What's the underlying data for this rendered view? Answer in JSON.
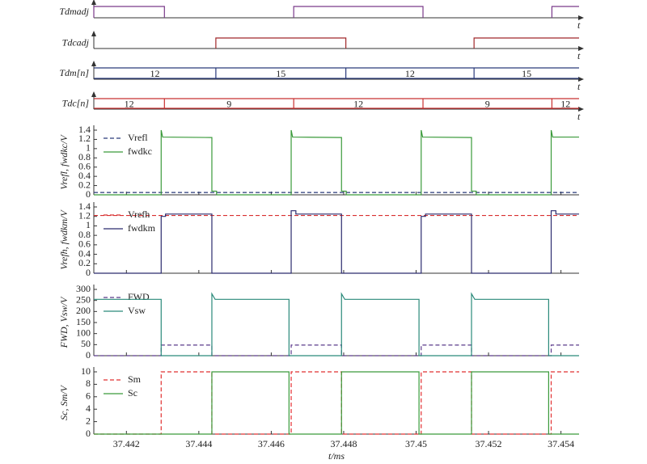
{
  "chart_data": [
    {
      "type": "digital",
      "ylabel": "Tdmadj",
      "xaxis_label": "t",
      "color": "#7a3a8a",
      "xlim": [
        37.4411,
        37.4545
      ],
      "intervals": [
        [
          37.4411,
          37.44305
        ],
        [
          37.44662,
          37.45019
        ],
        [
          37.45375,
          37.4545
        ]
      ]
    },
    {
      "type": "digital",
      "ylabel": "Tdcadj",
      "xaxis_label": "t",
      "color": "#a0282a",
      "xlim": [
        37.4411,
        37.4545
      ],
      "intervals": [
        [
          37.44447,
          37.44806
        ],
        [
          37.4516,
          37.4545
        ]
      ]
    },
    {
      "type": "bus",
      "ylabel": "Tdm[n]",
      "xaxis_label": "t",
      "color": "#2a3a7a",
      "xlim": [
        37.4411,
        37.4545
      ],
      "boundaries": [
        37.44447,
        37.44806,
        37.4516
      ],
      "values": [
        12,
        15,
        12,
        15
      ]
    },
    {
      "type": "bus",
      "ylabel": "Tdc[n]",
      "xaxis_label": "t",
      "color": "#c83030",
      "xlim": [
        37.4411,
        37.4545
      ],
      "boundaries": [
        37.44305,
        37.44662,
        37.45019,
        37.45375
      ],
      "values": [
        12,
        9,
        12,
        9,
        12
      ]
    },
    {
      "type": "line",
      "ylabel": "Vrefl, fwdkc/V",
      "xlim": [
        37.4411,
        37.4545
      ],
      "ylim": [
        0,
        1.4
      ],
      "yticks": [
        0,
        0.2,
        0.4,
        0.6,
        0.8,
        1,
        1.2,
        1.4
      ],
      "legend": "upper left",
      "series": [
        {
          "name": "Vrefl",
          "color": "#2a3a7a",
          "dash": true,
          "x": [
            37.4411,
            37.4545
          ],
          "values": [
            0.05,
            0.05
          ]
        },
        {
          "name": "fwdkc",
          "color": "#3a9a3a",
          "dash": false,
          "x": [
            37.4411,
            37.44296,
            37.44296,
            37.443,
            37.44436,
            37.44436,
            37.44449,
            37.44449,
            37.44655,
            37.44655,
            37.44659,
            37.44794,
            37.44794,
            37.44807,
            37.44807,
            37.45014,
            37.45014,
            37.45018,
            37.45153,
            37.45153,
            37.45166,
            37.45166,
            37.45373,
            37.45373,
            37.45377,
            37.4545
          ],
          "values": [
            0,
            0,
            1.4,
            1.25,
            1.24,
            0.08,
            0.08,
            0,
            0,
            1.4,
            1.25,
            1.24,
            0.08,
            0.08,
            0,
            0,
            1.4,
            1.25,
            1.24,
            0.08,
            0.08,
            0,
            0,
            1.4,
            1.25,
            1.25
          ]
        }
      ]
    },
    {
      "type": "line",
      "ylabel": "Vrefh, fwdkm/V",
      "xlim": [
        37.4411,
        37.4545
      ],
      "ylim": [
        0,
        1.4
      ],
      "yticks": [
        0,
        0.2,
        0.4,
        0.6,
        0.8,
        1,
        1.2,
        1.4
      ],
      "legend": "upper left",
      "series": [
        {
          "name": "Vrefh",
          "color": "#d83030",
          "dash": true,
          "x": [
            37.4411,
            37.4545
          ],
          "values": [
            1.22,
            1.22
          ]
        },
        {
          "name": "fwdkm",
          "color": "#2b2b6e",
          "dash": false,
          "x": [
            37.4411,
            37.44296,
            37.44296,
            37.44308,
            37.44308,
            37.44436,
            37.44436,
            37.44655,
            37.44655,
            37.44668,
            37.44668,
            37.44794,
            37.44794,
            37.45014,
            37.45014,
            37.45026,
            37.45026,
            37.45153,
            37.45153,
            37.45373,
            37.45373,
            37.45386,
            37.45386,
            37.4545
          ],
          "values": [
            0,
            0,
            1.2,
            1.2,
            1.25,
            1.25,
            0,
            0,
            1.32,
            1.32,
            1.25,
            1.25,
            0,
            0,
            1.2,
            1.2,
            1.25,
            1.25,
            0,
            0,
            1.32,
            1.32,
            1.25,
            1.25
          ]
        }
      ]
    },
    {
      "type": "line",
      "ylabel": "FWD, Vsw/V",
      "xlim": [
        37.4411,
        37.4545
      ],
      "ylim": [
        0,
        300
      ],
      "yticks": [
        0,
        50,
        100,
        150,
        200,
        250,
        300
      ],
      "legend": "upper left",
      "series": [
        {
          "name": "FWD",
          "color": "#5a3a8a",
          "dash": true,
          "x": [
            37.4411,
            37.44296,
            37.44296,
            37.44436,
            37.44436,
            37.44655,
            37.44655,
            37.44794,
            37.44794,
            37.45014,
            37.45014,
            37.45153,
            37.45153,
            37.45373,
            37.45373,
            37.4545
          ],
          "values": [
            0,
            0,
            48,
            48,
            0,
            0,
            48,
            48,
            0,
            0,
            48,
            48,
            0,
            0,
            48,
            48
          ]
        },
        {
          "name": "Vsw",
          "color": "#2a8a7a",
          "dash": false,
          "x": [
            37.4411,
            37.44296,
            37.44296,
            37.44436,
            37.44436,
            37.44445,
            37.44649,
            37.44649,
            37.44794,
            37.44794,
            37.44803,
            37.45008,
            37.45008,
            37.45153,
            37.45153,
            37.45162,
            37.45366,
            37.45366,
            37.4545
          ],
          "values": [
            255,
            255,
            0,
            0,
            280,
            255,
            255,
            0,
            0,
            280,
            255,
            255,
            0,
            0,
            280,
            255,
            255,
            0,
            0
          ]
        }
      ]
    },
    {
      "type": "line",
      "ylabel": "Sc, Sm/V",
      "xlabel": "t/ms",
      "xlim": [
        37.4411,
        37.4545
      ],
      "ylim": [
        0,
        10
      ],
      "yticks": [
        0,
        2,
        4,
        6,
        8,
        10
      ],
      "xticks": [
        37.442,
        37.444,
        37.446,
        37.448,
        37.45,
        37.452,
        37.454
      ],
      "legend": "upper left",
      "series": [
        {
          "name": "Sm",
          "color": "#e03030",
          "dash": true,
          "x": [
            37.4411,
            37.44296,
            37.44296,
            37.44436,
            37.44436,
            37.44655,
            37.44655,
            37.44794,
            37.44794,
            37.45014,
            37.45014,
            37.45153,
            37.45153,
            37.45373,
            37.45373,
            37.4545
          ],
          "values": [
            0,
            0,
            10,
            10,
            0,
            0,
            10,
            10,
            0,
            0,
            10,
            10,
            0,
            0,
            10,
            10
          ]
        },
        {
          "name": "Sc",
          "color": "#3a9a3a",
          "dash": false,
          "x": [
            37.4411,
            37.44436,
            37.44436,
            37.44649,
            37.44649,
            37.44794,
            37.44794,
            37.45008,
            37.45008,
            37.45153,
            37.45153,
            37.45366,
            37.45366,
            37.4545
          ],
          "values": [
            0,
            0,
            10,
            10,
            0,
            0,
            10,
            10,
            0,
            0,
            10,
            10,
            0,
            0
          ]
        }
      ]
    }
  ]
}
